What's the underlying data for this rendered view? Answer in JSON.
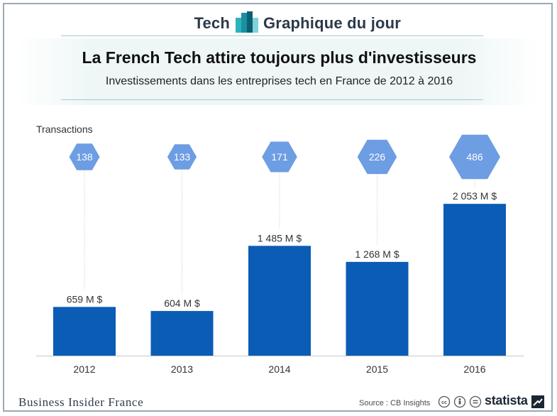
{
  "header": {
    "left": "Tech",
    "right": "Graphique du jour"
  },
  "colors": {
    "bar": "#0b5cb5",
    "hexagon": "#6d9de3",
    "connector": "#cfcfcf",
    "baseline": "#c8c8c8"
  },
  "chart_data": {
    "type": "bar",
    "title": "La French Tech attire toujours plus d'investisseurs",
    "subtitle": "Investissements dans les entreprises tech en France de 2012 à 2016",
    "categories": [
      "2012",
      "2013",
      "2014",
      "2015",
      "2016"
    ],
    "unit": "M $",
    "values": [
      659,
      604,
      1485,
      1268,
      2053
    ],
    "value_labels": [
      "659 M $",
      "604 M $",
      "1 485 M $",
      "1 268 M $",
      "2 053 M $"
    ],
    "ylim": [
      0,
      2400
    ],
    "grid": false,
    "transactions": {
      "label": "Transactions",
      "values": [
        138,
        133,
        171,
        226,
        486
      ],
      "labels": [
        "138",
        "133",
        "171",
        "226",
        "486"
      ]
    }
  },
  "footer": {
    "brand": "Business Insider France",
    "source": "Source : CB Insights",
    "publisher": "statista",
    "license_icons": [
      "cc-icon",
      "by-icon",
      "nd-icon"
    ]
  }
}
